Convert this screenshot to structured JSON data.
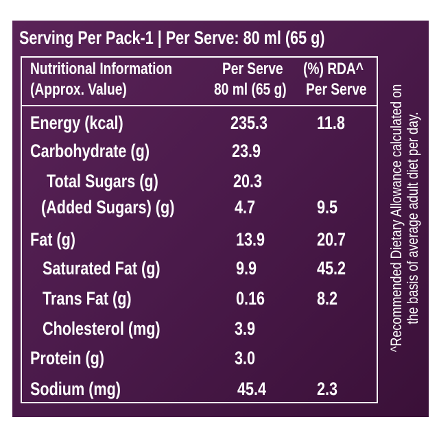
{
  "header": {
    "serving_info": "Serving Per Pack-1 | Per Serve: 80 ml (65 g)"
  },
  "table": {
    "columns": [
      {
        "line1": "Nutritional Information",
        "line2": "(Approx. Value)"
      },
      {
        "line1": "Per Serve",
        "line2": "80 ml (65 g)"
      },
      {
        "line1": "(%) RDA^",
        "line2": "Per Serve"
      }
    ],
    "rows": [
      [
        "Energy (kcal)",
        "235.3",
        "11.8"
      ],
      [
        "Carbohydrate (g)",
        "23.9"
      ],
      [
        "Total Sugars (g)",
        "20.3"
      ],
      [
        "(Added Sugars) (g)",
        "4.7",
        "9.5"
      ],
      [
        "Fat (g)",
        "13.9",
        "20.7"
      ],
      [
        "Saturated Fat (g)",
        "9.9",
        "45.2"
      ],
      [
        "Trans Fat (g)",
        "0.16",
        "8.2"
      ],
      [
        "Cholesterol (mg)",
        "3.9"
      ],
      [
        "Protein (g)",
        "3.0"
      ],
      [
        "Sodium (mg)",
        "45.4",
        "2.3"
      ]
    ]
  },
  "footnote": {
    "line1": "^Recommended Dietary Allowance calculated on",
    "line2": "the basis of average adult diet per day."
  }
}
